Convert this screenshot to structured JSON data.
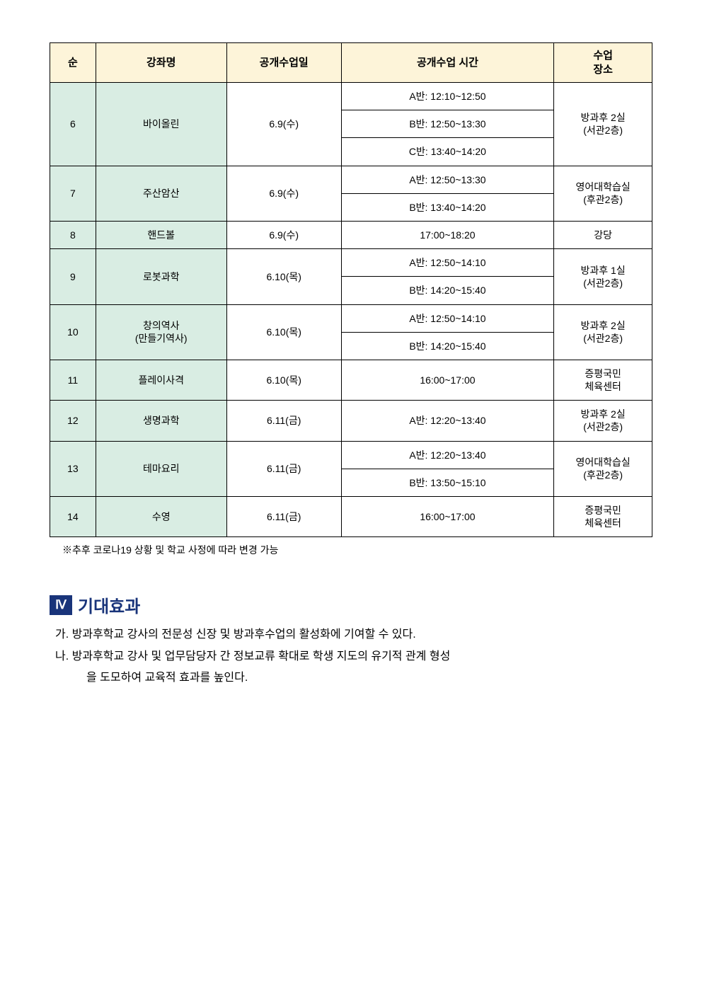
{
  "table": {
    "headers": {
      "num": "순",
      "course": "강좌명",
      "date": "공개수업일",
      "time": "공개수업 시간",
      "location": "수업\n장소"
    },
    "rows": [
      {
        "num": "6",
        "course": "바이올린",
        "date": "6.9(수)",
        "times": [
          "A반: 12:10~12:50",
          "B반: 12:50~13:30",
          "C반: 13:40~14:20"
        ],
        "location": "방과후 2실\n(서관2층)"
      },
      {
        "num": "7",
        "course": "주산암산",
        "date": "6.9(수)",
        "times": [
          "A반: 12:50~13:30",
          "B반: 13:40~14:20"
        ],
        "location": "영어대학습실\n(후관2층)"
      },
      {
        "num": "8",
        "course": "핸드볼",
        "date": "6.9(수)",
        "times": [
          "17:00~18:20"
        ],
        "location": "강당"
      },
      {
        "num": "9",
        "course": "로봇과학",
        "date": "6.10(목)",
        "times": [
          "A반: 12:50~14:10",
          "B반: 14:20~15:40"
        ],
        "location": "방과후 1실\n(서관2층)"
      },
      {
        "num": "10",
        "course": "창의역사\n(만들기역사)",
        "date": "6.10(목)",
        "times": [
          "A반: 12:50~14:10",
          "B반: 14:20~15:40"
        ],
        "location": "방과후 2실\n(서관2층)"
      },
      {
        "num": "11",
        "course": "플레이사격",
        "date": "6.10(목)",
        "times": [
          "16:00~17:00"
        ],
        "location": "증평국민\n체육센터"
      },
      {
        "num": "12",
        "course": "생명과학",
        "date": "6.11(금)",
        "times": [
          "A반: 12:20~13:40"
        ],
        "location": "방과후 2실\n(서관2층)"
      },
      {
        "num": "13",
        "course": "테마요리",
        "date": "6.11(금)",
        "times": [
          "A반: 12:20~13:40",
          "B반: 13:50~15:10"
        ],
        "location": "영어대학습실\n(후관2층)"
      },
      {
        "num": "14",
        "course": "수영",
        "date": "6.11(금)",
        "times": [
          "16:00~17:00"
        ],
        "location": "증평국민\n체육센터"
      }
    ],
    "footnote": "※추후 코로나19 상황 및 학교 사정에 따라 변경 가능",
    "colors": {
      "header_bg": "#fdf4d9",
      "num_course_bg": "#d9ede3",
      "border": "#000000"
    }
  },
  "section": {
    "badge": "Ⅳ",
    "title": "기대효과",
    "items": [
      {
        "prefix": "가.",
        "text": "방과후학교 강사의 전문성 신장 및 방과후수업의 활성화에 기여할 수 있다."
      },
      {
        "prefix": "나.",
        "text_line1": "방과후학교 강사 및 업무담당자 간 정보교류 확대로 학생 지도의 유기적 관계 형성",
        "text_line2": "을 도모하여 교육적 효과를 높인다."
      }
    ]
  }
}
